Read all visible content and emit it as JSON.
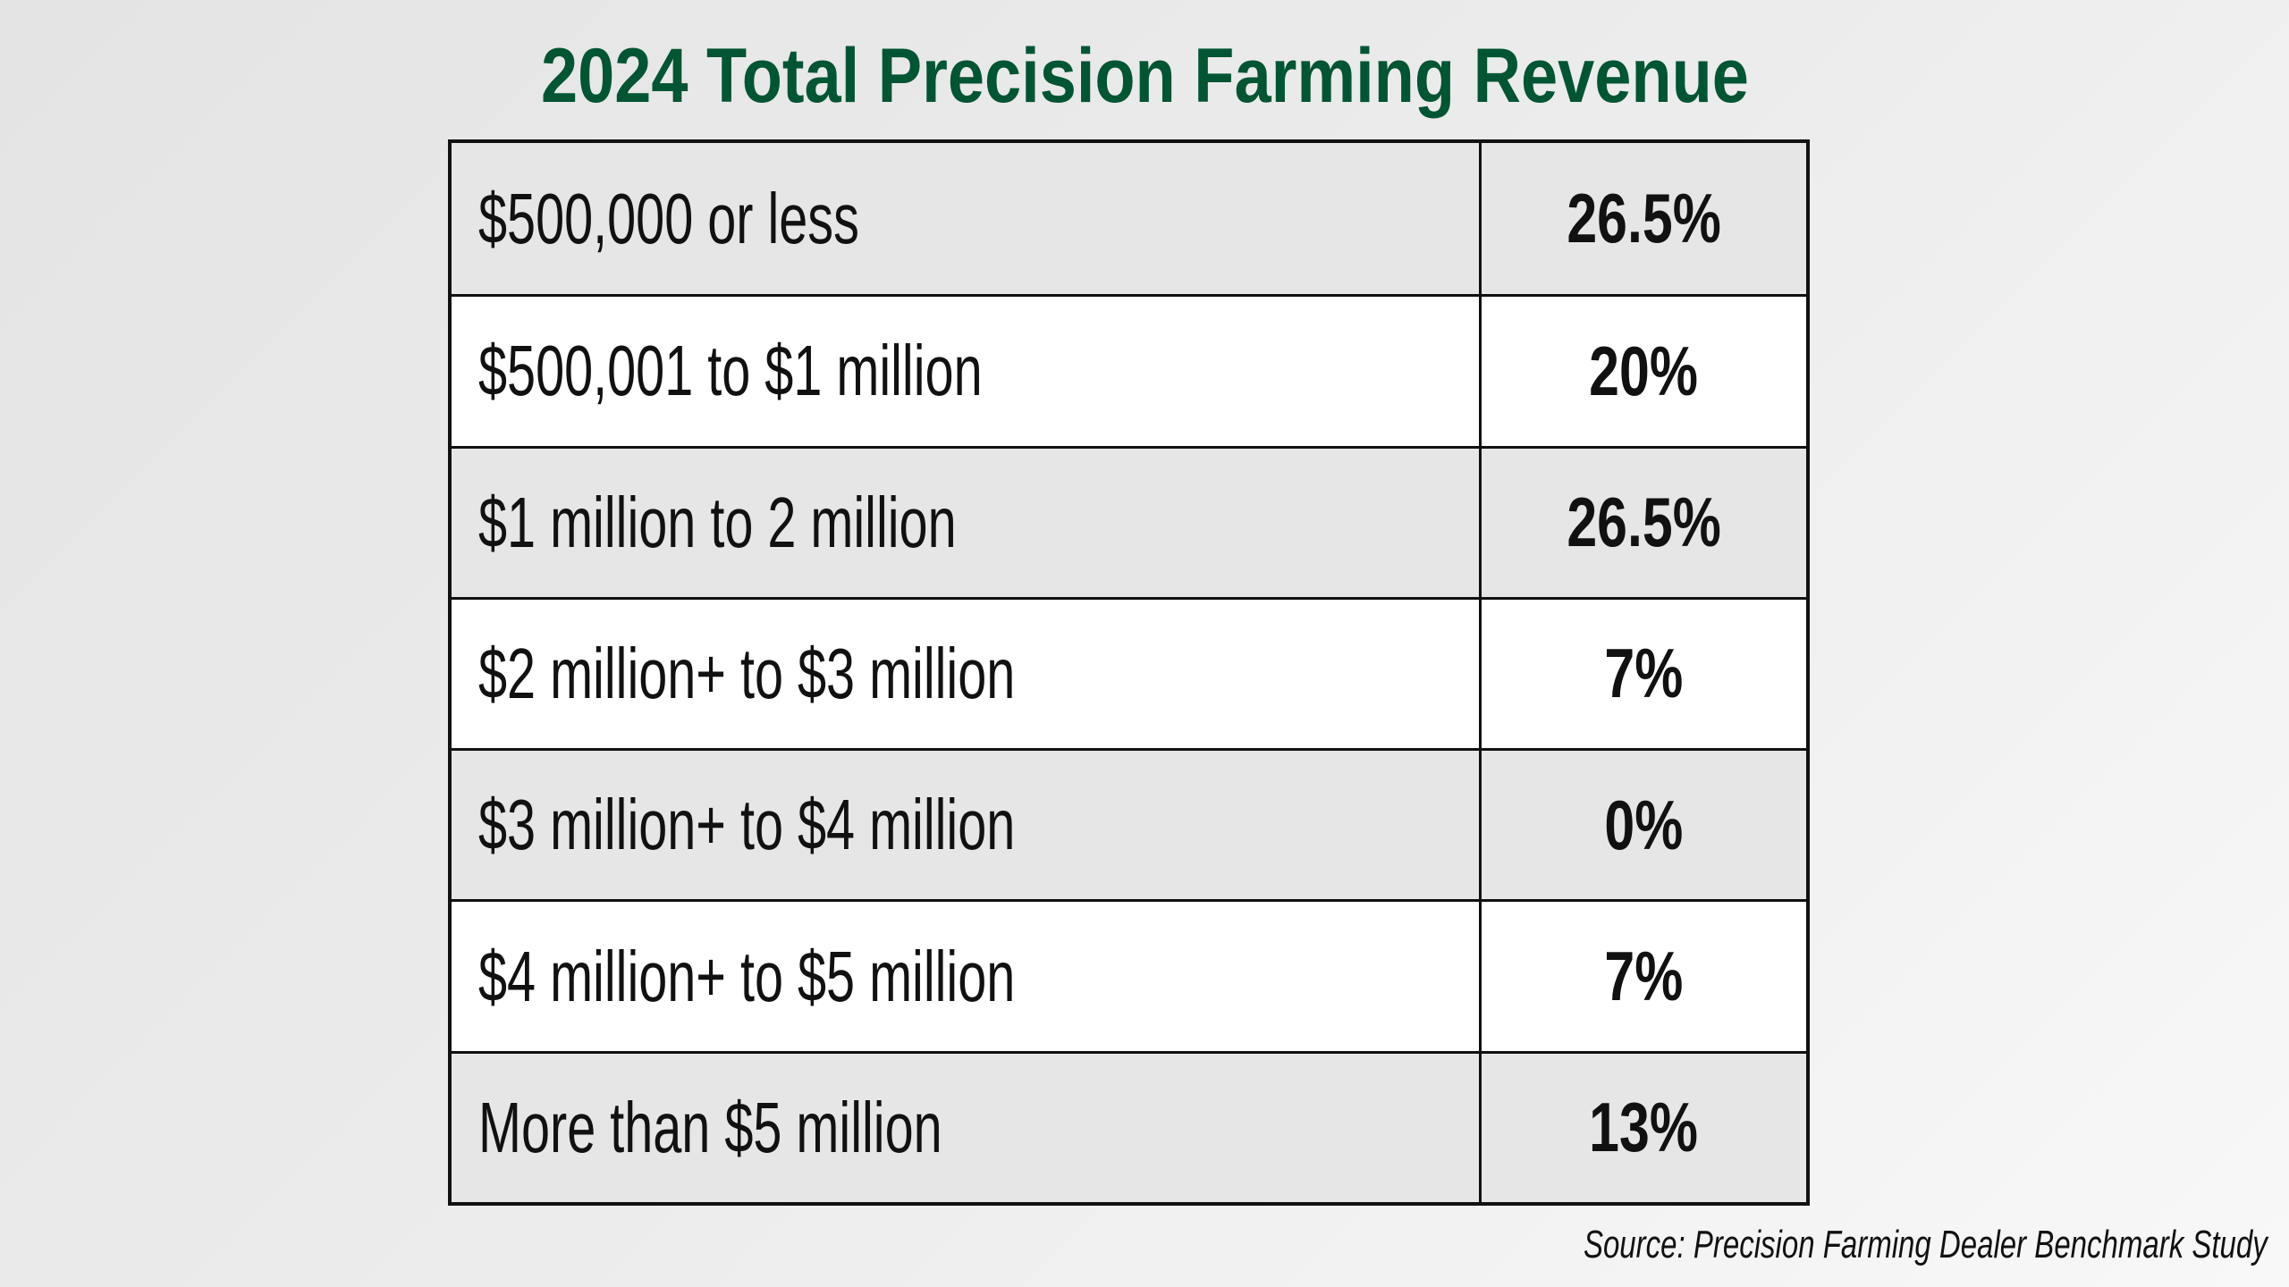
{
  "title": "2024 Total Precision Farming Revenue",
  "rows": [
    {
      "label": "$500,000 or less",
      "value": "26.5%"
    },
    {
      "label": "$500,001 to $1 million",
      "value": "20%"
    },
    {
      "label": "$1 million to 2 million",
      "value": "26.5%"
    },
    {
      "label": "$2 million+ to $3 million",
      "value": "7%"
    },
    {
      "label": "$3 million+ to $4 million",
      "value": "0%"
    },
    {
      "label": "$4 million+ to $5 million",
      "value": "7%"
    },
    {
      "label": "More than $5 million",
      "value": "13%"
    }
  ],
  "source": "Source: Precision Farming Dealer Benchmark Study",
  "colors": {
    "title": "#005533",
    "row_shaded": "#e6e6e6",
    "row_plain": "#ffffff",
    "border": "#111111"
  }
}
